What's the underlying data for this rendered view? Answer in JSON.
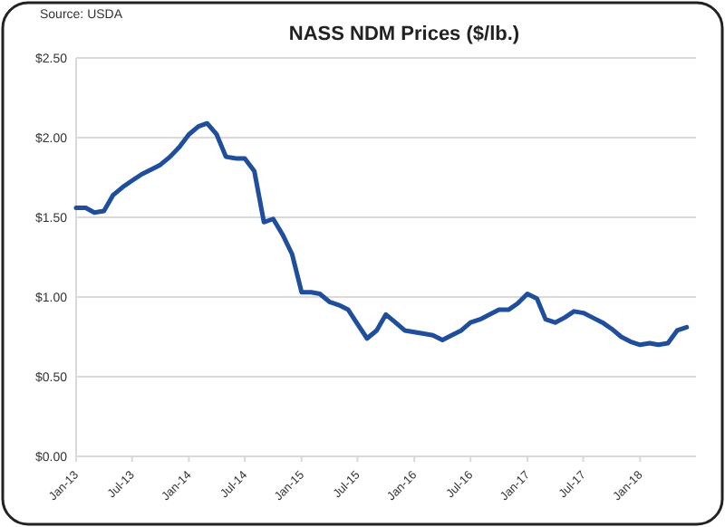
{
  "chart_data": {
    "type": "line",
    "title": "NASS NDM Prices ($/lb.)",
    "annotations": [
      "Source: USDA"
    ],
    "x": [
      "2013-01",
      "2013-02",
      "2013-03",
      "2013-04",
      "2013-05",
      "2013-06",
      "2013-07",
      "2013-08",
      "2013-09",
      "2013-10",
      "2013-11",
      "2013-12",
      "2014-01",
      "2014-02",
      "2014-03",
      "2014-04",
      "2014-05",
      "2014-06",
      "2014-07",
      "2014-08",
      "2014-09",
      "2014-10",
      "2014-11",
      "2014-12",
      "2015-01",
      "2015-02",
      "2015-03",
      "2015-04",
      "2015-05",
      "2015-06",
      "2015-07",
      "2015-08",
      "2015-09",
      "2015-10",
      "2015-11",
      "2015-12",
      "2016-01",
      "2016-02",
      "2016-03",
      "2016-04",
      "2016-05",
      "2016-06",
      "2016-07",
      "2016-08",
      "2016-09",
      "2016-10",
      "2016-11",
      "2016-12",
      "2017-01",
      "2017-02",
      "2017-03",
      "2017-04",
      "2017-05",
      "2017-06",
      "2017-07",
      "2017-08",
      "2017-09",
      "2017-10",
      "2017-11",
      "2017-12",
      "2018-01",
      "2018-02",
      "2018-03",
      "2018-04",
      "2018-05",
      "2018-06"
    ],
    "series": [
      {
        "color": "#1f4e9c",
        "values": [
          1.56,
          1.56,
          1.53,
          1.54,
          1.64,
          1.69,
          1.73,
          1.77,
          1.8,
          1.83,
          1.88,
          1.94,
          2.02,
          2.07,
          2.09,
          2.02,
          1.88,
          1.87,
          1.87,
          1.79,
          1.47,
          1.49,
          1.39,
          1.27,
          1.03,
          1.03,
          1.02,
          0.97,
          0.95,
          0.92,
          0.83,
          0.74,
          0.79,
          0.89,
          0.84,
          0.79,
          0.78,
          0.77,
          0.76,
          0.73,
          0.76,
          0.79,
          0.84,
          0.86,
          0.89,
          0.92,
          0.92,
          0.96,
          1.02,
          0.99,
          0.86,
          0.84,
          0.87,
          0.91,
          0.9,
          0.87,
          0.84,
          0.8,
          0.75,
          0.72,
          0.7,
          0.71,
          0.7,
          0.71,
          0.79,
          0.81
        ]
      }
    ],
    "xlim": [
      "2013-01",
      "2018-07"
    ],
    "xticks": [
      {
        "value": "2013-01",
        "label": "Jan-13"
      },
      {
        "value": "2013-07",
        "label": "Jul-13"
      },
      {
        "value": "2014-01",
        "label": "Jan-14"
      },
      {
        "value": "2014-07",
        "label": "Jul-14"
      },
      {
        "value": "2015-01",
        "label": "Jan-15"
      },
      {
        "value": "2015-07",
        "label": "Jul-15"
      },
      {
        "value": "2016-01",
        "label": "Jan-16"
      },
      {
        "value": "2016-07",
        "label": "Jul-16"
      },
      {
        "value": "2017-01",
        "label": "Jan-17"
      },
      {
        "value": "2017-07",
        "label": "Jul-17"
      },
      {
        "value": "2018-01",
        "label": "Jan-18"
      }
    ],
    "ylim": [
      0,
      2.5
    ],
    "yticks": [
      {
        "value": 0,
        "label": "$0.00"
      },
      {
        "value": 0.5,
        "label": "$0.50"
      },
      {
        "value": 1,
        "label": "$1.00"
      },
      {
        "value": 1.5,
        "label": "$1.50"
      },
      {
        "value": 2,
        "label": "$2.00"
      },
      {
        "value": 2.5,
        "label": "$2.50"
      }
    ],
    "grid": "y",
    "marker": "none",
    "line_style": "solid"
  }
}
